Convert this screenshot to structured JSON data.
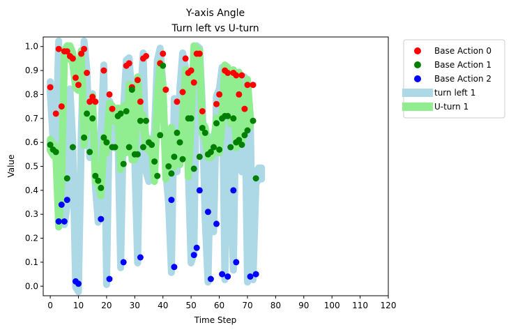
{
  "chart_data": {
    "type": "scatter",
    "title": "Y-axis Angle",
    "subtitle": "Turn left vs U-turn",
    "xlabel": "Time Step",
    "ylabel": "Value",
    "xlim": [
      -2.5,
      120
    ],
    "ylim": [
      -0.04,
      1.04
    ],
    "xticks": [
      0,
      10,
      20,
      30,
      40,
      50,
      60,
      70,
      80,
      90,
      100,
      110,
      120
    ],
    "yticks": [
      0.0,
      0.1,
      0.2,
      0.3,
      0.4,
      0.5,
      0.6,
      0.7,
      0.8,
      0.9,
      1.0
    ],
    "grid": false,
    "legend_position": "outside-top-right",
    "colors": {
      "base_action_0": "#ff0000",
      "base_action_1": "#008000",
      "base_action_2": "#0000ff",
      "turn_left_band": "#add8e6",
      "u_turn_band": "#90ee90"
    },
    "bands": [
      {
        "name": "turn left 1",
        "color": "#add8e6",
        "x": [
          0,
          1,
          2,
          3,
          4,
          5,
          6,
          7,
          8,
          9,
          10,
          11,
          12,
          13,
          14,
          15,
          16,
          17,
          18,
          19,
          20,
          21,
          22,
          23,
          24,
          25,
          26,
          27,
          28,
          29,
          30,
          31,
          32,
          33,
          34,
          35,
          36,
          37,
          38,
          39,
          40,
          41,
          42,
          43,
          44,
          45,
          46,
          47,
          48,
          49,
          50,
          51,
          52,
          53,
          54,
          55,
          56,
          57,
          58,
          59,
          60,
          61,
          62,
          63,
          64,
          65,
          66,
          67,
          68,
          69,
          70,
          71,
          72,
          73,
          74,
          75
        ],
        "y": [
          0.83,
          0.63,
          0.58,
          1.0,
          0.34,
          0.28,
          0.36,
          0.8,
          0.58,
          0.02,
          0.0,
          0.62,
          1.0,
          0.88,
          0.56,
          0.78,
          0.44,
          0.29,
          0.62,
          0.9,
          0.03,
          0.75,
          0.72,
          0.6,
          0.65,
          0.1,
          0.72,
          0.92,
          0.93,
          0.77,
          0.55,
          0.12,
          0.76,
          0.95,
          0.5,
          0.46,
          0.53,
          0.63,
          0.92,
          0.97,
          0.82,
          0.5,
          0.37,
          0.08,
          0.76,
          0.5,
          0.8,
          0.95,
          0.89,
          0.5,
          0.12,
          0.16,
          0.98,
          0.97,
          0.73,
          0.3,
          0.04,
          0.6,
          0.25,
          0.77,
          0.8,
          0.89,
          0.05,
          0.88,
          0.4,
          0.09,
          0.86,
          0.74,
          0.5,
          0.85,
          0.04,
          0.68,
          0.05,
          0.45,
          0.47,
          0.47
        ]
      },
      {
        "name": "U-turn 1",
        "color": "#90ee90",
        "x": [
          0,
          1,
          2,
          3,
          4,
          5,
          6,
          7,
          8,
          9,
          10,
          11,
          12,
          13,
          14,
          15,
          16,
          17,
          18,
          19,
          20,
          21,
          22,
          23,
          24,
          25,
          26,
          27,
          28,
          29,
          30,
          31,
          32,
          33,
          34,
          35,
          36,
          37,
          38,
          39,
          40,
          41,
          42,
          43,
          44,
          45,
          46,
          47,
          48,
          49,
          50,
          51,
          52,
          53,
          54,
          55,
          56,
          57,
          58,
          59,
          60,
          61,
          62,
          63,
          64,
          65,
          66,
          67,
          68,
          69,
          70,
          71
        ],
        "y": [
          0.59,
          0.57,
          0.56,
          0.27,
          0.44,
          0.96,
          0.98,
          0.98,
          0.95,
          0.85,
          0.84,
          0.96,
          0.61,
          0.71,
          0.69,
          0.77,
          0.46,
          0.45,
          0.4,
          0.6,
          0.58,
          0.74,
          0.73,
          0.71,
          0.72,
          0.51,
          0.73,
          0.58,
          0.82,
          0.55,
          0.55,
          0.85,
          0.69,
          0.69,
          0.6,
          0.59,
          0.58,
          0.46,
          0.77,
          0.91,
          0.82,
          0.47,
          0.54,
          0.64,
          0.52,
          0.6,
          0.53,
          0.69,
          0.88,
          0.48,
          0.69,
          0.98,
          0.97,
          0.96,
          0.66,
          0.64,
          0.56,
          0.56,
          0.58,
          0.68,
          0.58,
          0.7,
          0.9,
          0.89,
          0.7,
          0.88,
          0.6,
          0.87,
          0.63,
          0.68,
          0.84,
          0.69
        ]
      }
    ],
    "series": [
      {
        "name": "Base Action 0",
        "color": "#ff0000",
        "x": [
          0,
          2,
          3,
          4,
          5,
          6,
          7,
          8,
          9,
          10,
          11,
          12,
          13,
          14,
          15,
          16,
          19,
          21,
          22,
          27,
          28,
          29,
          31,
          32,
          33,
          34,
          39,
          40,
          41,
          45,
          47,
          48,
          49,
          50,
          51,
          52,
          53,
          54,
          59,
          60,
          62,
          63,
          65,
          66,
          67,
          68,
          69,
          70,
          72
        ],
        "y": [
          0.83,
          0.72,
          0.99,
          0.75,
          0.98,
          0.98,
          0.96,
          0.95,
          0.87,
          0.84,
          0.97,
          0.99,
          0.89,
          0.77,
          0.79,
          0.77,
          0.9,
          0.8,
          0.74,
          0.92,
          0.93,
          0.83,
          0.86,
          0.77,
          0.95,
          0.96,
          0.93,
          0.97,
          0.82,
          0.77,
          0.81,
          0.95,
          0.89,
          0.9,
          0.85,
          0.97,
          0.97,
          0.73,
          0.76,
          0.8,
          0.9,
          0.89,
          0.89,
          0.88,
          0.8,
          0.88,
          0.74,
          0.84,
          0.84
        ]
      },
      {
        "name": "Base Action 1",
        "color": "#008000",
        "x": [
          0,
          1,
          2,
          3,
          6,
          8,
          12,
          13,
          14,
          15,
          16,
          17,
          18,
          19,
          20,
          22,
          23,
          24,
          25,
          26,
          27,
          28,
          29,
          30,
          31,
          32,
          33,
          34,
          35,
          36,
          37,
          38,
          39,
          40,
          42,
          43,
          44,
          45,
          46,
          47,
          49,
          50,
          51,
          53,
          54,
          55,
          56,
          57,
          58,
          59,
          60,
          61,
          62,
          63,
          64,
          65,
          66,
          67,
          68,
          69,
          70,
          72,
          73
        ],
        "y": [
          0.59,
          0.57,
          0.56,
          0.27,
          0.45,
          0.58,
          0.62,
          0.72,
          0.56,
          0.7,
          0.46,
          0.44,
          0.41,
          0.62,
          0.6,
          0.58,
          0.58,
          0.71,
          0.72,
          0.51,
          0.73,
          0.58,
          0.82,
          0.55,
          0.55,
          0.69,
          0.58,
          0.69,
          0.6,
          0.59,
          0.52,
          0.46,
          0.63,
          0.92,
          0.5,
          0.47,
          0.54,
          0.64,
          0.6,
          0.53,
          0.7,
          0.7,
          0.49,
          0.54,
          0.66,
          0.64,
          0.55,
          0.56,
          0.58,
          0.68,
          0.57,
          0.7,
          0.71,
          0.71,
          0.58,
          0.7,
          0.6,
          0.61,
          0.59,
          0.63,
          0.65,
          0.69,
          0.45
        ]
      },
      {
        "name": "Base Action 2",
        "color": "#0000ff",
        "x": [
          3,
          4,
          5,
          6,
          9,
          10,
          18,
          21,
          26,
          32,
          43,
          44,
          51,
          52,
          53,
          56,
          57,
          59,
          61,
          63,
          65,
          66,
          71,
          73
        ],
        "y": [
          0.27,
          0.34,
          0.27,
          0.36,
          0.02,
          0.01,
          0.28,
          0.03,
          0.1,
          0.12,
          0.36,
          0.08,
          0.13,
          0.16,
          0.4,
          0.31,
          0.03,
          0.26,
          0.05,
          0.04,
          0.4,
          0.1,
          0.04,
          0.05
        ]
      }
    ]
  }
}
